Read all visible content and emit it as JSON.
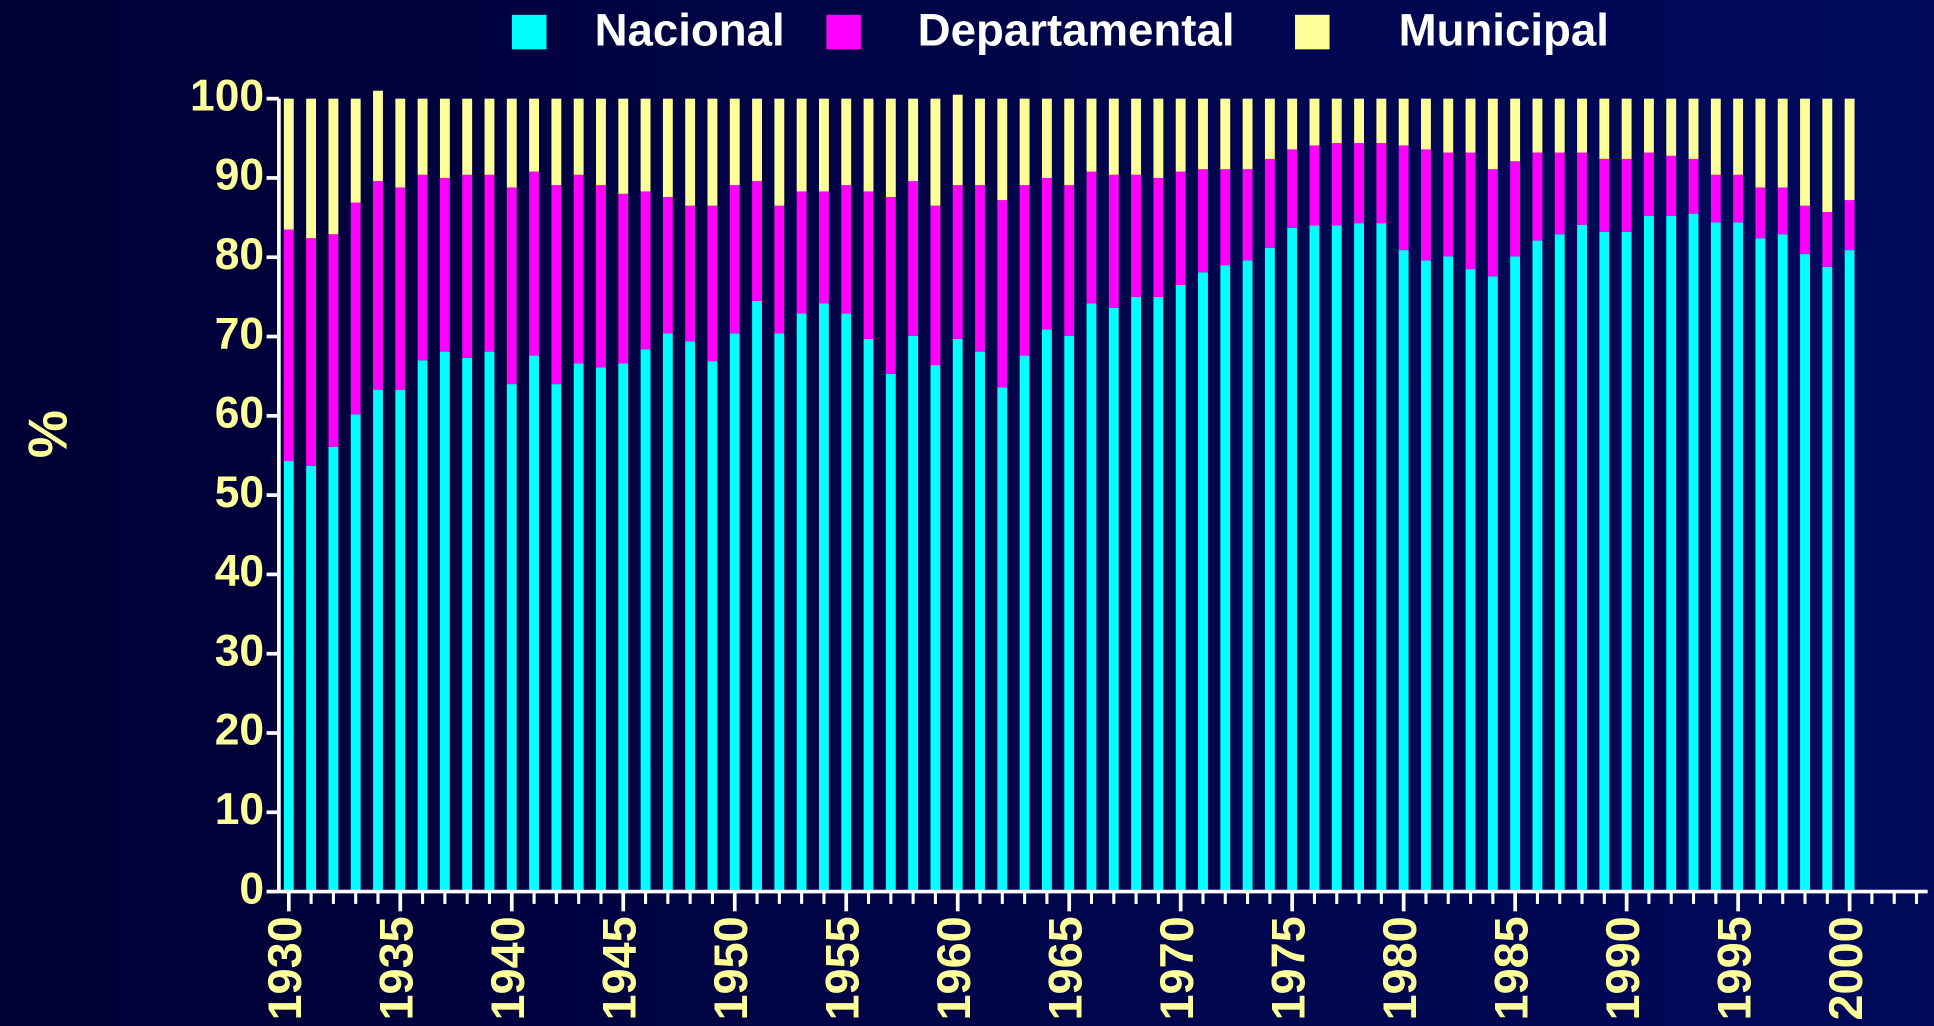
{
  "chart_data": {
    "type": "stacked_bar",
    "y_label": "%",
    "x": [
      1930,
      1931,
      1932,
      1933,
      1934,
      1935,
      1936,
      1937,
      1938,
      1939,
      1940,
      1941,
      1942,
      1943,
      1944,
      1945,
      1946,
      1947,
      1948,
      1949,
      1950,
      1951,
      1952,
      1953,
      1954,
      1955,
      1956,
      1957,
      1958,
      1959,
      1960,
      1961,
      1962,
      1963,
      1964,
      1965,
      1966,
      1967,
      1968,
      1969,
      1970,
      1971,
      1972,
      1973,
      1974,
      1975,
      1976,
      1977,
      1978,
      1979,
      1980,
      1981,
      1982,
      1983,
      1984,
      1985,
      1986,
      1987,
      1988,
      1989,
      1990,
      1991,
      1992,
      1993,
      1994,
      1995,
      1996,
      1997,
      1998,
      1999,
      2000
    ],
    "series": [
      {
        "name": "Nacional",
        "color": "#00ffff",
        "values": [
          54.3,
          53.7,
          56.1,
          60.2,
          63.3,
          63.3,
          67,
          68.1,
          67.3,
          68.1,
          64,
          67.6,
          64,
          66.6,
          66.1,
          66.6,
          68.4,
          70.4,
          69.4,
          66.9,
          70.4,
          74.5,
          70.4,
          72.9,
          74.2,
          72.9,
          69.7,
          65.3,
          70.1,
          66.4,
          69.7,
          68.1,
          63.6,
          67.6,
          70.9,
          70.1,
          74.2,
          73.6,
          75,
          75,
          76.5,
          78.1,
          79,
          79.6,
          81.2,
          83.7,
          84,
          84,
          84.3,
          84.3,
          80.9,
          79.6,
          80.1,
          78.5,
          77.6,
          80.1,
          82.1,
          82.9,
          84.1,
          83.2,
          83.2,
          85.2,
          85.2,
          85.5,
          84.4,
          84.4,
          82.4,
          82.9,
          80.4,
          78.8,
          80.9
        ]
      },
      {
        "name": "Departamental",
        "color": "#ff00ff",
        "values": [
          29.2,
          28.7,
          26.8,
          26.7,
          26.3,
          25.5,
          23.4,
          21.9,
          23.1,
          22.3,
          24.8,
          23.2,
          25.1,
          23.8,
          23,
          21.4,
          19.9,
          17.2,
          17.1,
          19.6,
          18.7,
          15.1,
          16.1,
          15.4,
          14.1,
          16.2,
          18.6,
          22.3,
          19.5,
          20.1,
          19.4,
          21,
          23.6,
          21.5,
          19.1,
          19,
          16.6,
          16.8,
          15.4,
          15,
          14.3,
          13,
          12.1,
          11.5,
          11.2,
          9.9,
          10.1,
          10.4,
          10.1,
          10.1,
          13.2,
          14,
          13.1,
          14.7,
          13.5,
          12,
          11.1,
          10.3,
          9.1,
          9.2,
          9.2,
          8,
          7.6,
          6.9,
          6,
          6,
          6.4,
          5.9,
          6.1,
          6.9,
          6.3
        ]
      },
      {
        "name": "Municipal",
        "color": "#ffff99",
        "values": [
          16.5,
          17.6,
          17.1,
          13.1,
          11.4,
          11.2,
          9.6,
          10,
          9.6,
          9.6,
          11.2,
          9.2,
          10.9,
          9.6,
          10.9,
          12,
          11.7,
          12.4,
          13.5,
          13.5,
          10.9,
          10.4,
          13.5,
          11.7,
          11.7,
          10.9,
          11.7,
          12.4,
          10.4,
          13.5,
          11.4,
          10.9,
          12.8,
          10.9,
          10,
          10.9,
          9.2,
          9.6,
          9.6,
          10,
          9.2,
          8.9,
          8.9,
          8.9,
          7.6,
          6.4,
          5.9,
          5.6,
          5.6,
          5.6,
          5.9,
          6.4,
          6.8,
          6.8,
          8.9,
          7.9,
          6.8,
          6.8,
          6.8,
          7.6,
          7.6,
          6.8,
          7.2,
          7.6,
          9.6,
          9.6,
          11.2,
          11.2,
          13.5,
          14.3,
          12.8
        ]
      }
    ],
    "xlim": [
      1929.5,
      2003.5
    ],
    "xticks": [
      1930,
      1935,
      1940,
      1945,
      1950,
      1955,
      1960,
      1965,
      1970,
      1975,
      1980,
      1985,
      1990,
      1995,
      2000
    ],
    "ylim": [
      0,
      100
    ],
    "yticks": [
      0,
      10,
      20,
      30,
      40,
      50,
      60,
      70,
      80,
      90,
      100
    ],
    "legend": "top"
  }
}
